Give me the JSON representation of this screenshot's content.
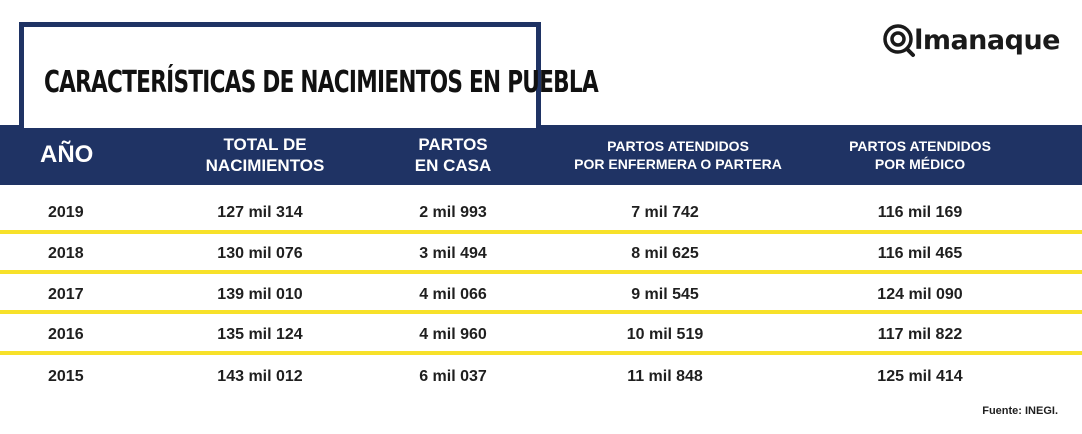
{
  "title": "CARACTERÍSTICAS DE NACIMIENTOS EN PUEBLA",
  "logo": {
    "text": "lmanaque",
    "icon": "at-sign-magnifier-icon"
  },
  "colors": {
    "navy": "#1f3364",
    "yellow": "#f7e12a"
  },
  "headers": {
    "year": "AÑO",
    "total": "TOTAL DE\nNACIMIENTOS",
    "casa": "PARTOS\nEN CASA",
    "enfermera": "PARTOS ATENDIDOS\nPOR ENFERMERA O PARTERA",
    "medico": "PARTOS ATENDIDOS\nPOR MÉDICO"
  },
  "rows": [
    {
      "year": "2019",
      "total": "127 mil 314",
      "casa": "2 mil 993",
      "enfermera": "7 mil 742",
      "medico": "116 mil 169"
    },
    {
      "year": "2018",
      "total": "130 mil 076",
      "casa": "3 mil 494",
      "enfermera": "8 mil 625",
      "medico": "116 mil 465"
    },
    {
      "year": "2017",
      "total": "139 mil 010",
      "casa": "4 mil 066",
      "enfermera": "9 mil 545",
      "medico": "124 mil 090"
    },
    {
      "year": "2016",
      "total": "135 mil 124",
      "casa": "4 mil 960",
      "enfermera": "10 mil 519",
      "medico": "117 mil 822"
    },
    {
      "year": "2015",
      "total": "143 mil 012",
      "casa": "6 mil 037",
      "enfermera": "11 mil 848",
      "medico": "125 mil 414"
    }
  ],
  "source": "Fuente: INEGI."
}
